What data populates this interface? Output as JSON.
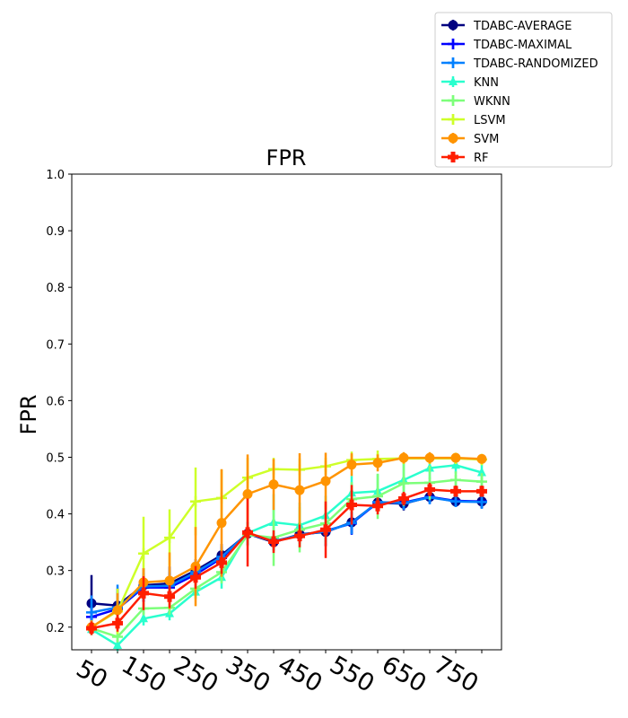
{
  "chart_data": {
    "type": "line",
    "title": "FPR",
    "ylabel": "FPR",
    "xlabel": "",
    "x": [
      50,
      100,
      150,
      200,
      250,
      300,
      350,
      400,
      450,
      500,
      550,
      600,
      650,
      700,
      750,
      800
    ],
    "xtick_labels": [
      "50",
      "150",
      "250",
      "350",
      "450",
      "550",
      "650",
      "750"
    ],
    "xtick_values": [
      50,
      150,
      250,
      350,
      450,
      550,
      650,
      750
    ],
    "ylim": [
      0.16,
      1.0
    ],
    "yticks": [
      0.2,
      0.3,
      0.4,
      0.5,
      0.6,
      0.7,
      0.8,
      0.9,
      1.0
    ],
    "ytick_labels": [
      "0.2",
      "0.3",
      "0.4",
      "0.5",
      "0.6",
      "0.7",
      "0.8",
      "0.9",
      "1.0"
    ],
    "grid": false,
    "legend_position": "top-right, outside plot",
    "series": [
      {
        "name": "TDABC-AVERAGE",
        "color": "#000080",
        "marker": "circle",
        "values": [
          0.242,
          0.238,
          0.274,
          0.277,
          0.3,
          0.327,
          0.365,
          0.35,
          0.364,
          0.368,
          0.385,
          0.42,
          0.418,
          0.43,
          0.422,
          0.422
        ],
        "errors": [
          0.05,
          0.03,
          0.03,
          0.03,
          0.02,
          0.02,
          0.02,
          0.015,
          0.015,
          0.025,
          0.02,
          0.012,
          0.012,
          0.01,
          0.01,
          0.012
        ]
      },
      {
        "name": "TDABC-MAXIMAL",
        "color": "#0000ff",
        "marker": "plus",
        "values": [
          0.218,
          0.232,
          0.27,
          0.27,
          0.293,
          0.322,
          0.365,
          0.352,
          0.362,
          0.37,
          0.383,
          0.42,
          0.42,
          0.43,
          0.423,
          0.422
        ],
        "errors": [
          0.03,
          0.03,
          0.025,
          0.025,
          0.02,
          0.02,
          0.02,
          0.015,
          0.015,
          0.02,
          0.02,
          0.012,
          0.012,
          0.012,
          0.01,
          0.012
        ]
      },
      {
        "name": "TDABC-RANDOMIZED",
        "color": "#0080ff",
        "marker": "plus",
        "values": [
          0.226,
          0.235,
          0.272,
          0.273,
          0.297,
          0.324,
          0.366,
          0.351,
          0.363,
          0.369,
          0.384,
          0.421,
          0.419,
          0.429,
          0.422,
          0.421
        ],
        "errors": [
          0.03,
          0.04,
          0.025,
          0.025,
          0.02,
          0.02,
          0.02,
          0.015,
          0.015,
          0.02,
          0.02,
          0.012,
          0.012,
          0.012,
          0.01,
          0.012
        ]
      },
      {
        "name": "KNN",
        "color": "#29ffce",
        "marker": "triangle",
        "values": [
          0.196,
          0.168,
          0.215,
          0.224,
          0.262,
          0.288,
          0.366,
          0.385,
          0.38,
          0.397,
          0.437,
          0.44,
          0.46,
          0.481,
          0.486,
          0.473
        ],
        "errors": [
          0.01,
          0.01,
          0.012,
          0.012,
          0.012,
          0.02,
          0.02,
          0.05,
          0.04,
          0.035,
          0.03,
          0.03,
          0.03,
          0.02,
          0.015,
          0.015
        ]
      },
      {
        "name": "WKNN",
        "color": "#7dff7a",
        "marker": "plus",
        "values": [
          0.198,
          0.183,
          0.233,
          0.234,
          0.268,
          0.297,
          0.363,
          0.358,
          0.372,
          0.383,
          0.426,
          0.431,
          0.454,
          0.455,
          0.46,
          0.457
        ],
        "errors": [
          0.012,
          0.01,
          0.012,
          0.012,
          0.012,
          0.02,
          0.02,
          0.05,
          0.04,
          0.035,
          0.03,
          0.04,
          0.04,
          0.03,
          0.015,
          0.015
        ]
      },
      {
        "name": "LSVM",
        "color": "#ceff29",
        "marker": "plus",
        "values": [
          0.2,
          0.228,
          0.33,
          0.358,
          0.422,
          0.428,
          0.464,
          0.479,
          0.478,
          0.484,
          0.495,
          0.497,
          0.498,
          0.498,
          0.498,
          0.496
        ],
        "errors": [
          0.012,
          0.04,
          0.065,
          0.05,
          0.06,
          0.05,
          0.035,
          0.02,
          0.02,
          0.015,
          0.015,
          0.015,
          0.01,
          0.01,
          0.01,
          0.01
        ]
      },
      {
        "name": "SVM",
        "color": "#ff9400",
        "marker": "circle",
        "values": [
          0.2,
          0.23,
          0.279,
          0.282,
          0.307,
          0.384,
          0.435,
          0.452,
          0.442,
          0.458,
          0.487,
          0.49,
          0.499,
          0.499,
          0.499,
          0.497
        ],
        "errors": [
          0.012,
          0.03,
          0.025,
          0.05,
          0.07,
          0.095,
          0.07,
          0.045,
          0.065,
          0.05,
          0.02,
          0.015,
          0.01,
          0.01,
          0.008,
          0.008
        ]
      },
      {
        "name": "RF",
        "color": "#ff1e00",
        "marker": "plus-filled",
        "values": [
          0.198,
          0.207,
          0.26,
          0.254,
          0.288,
          0.314,
          0.367,
          0.351,
          0.361,
          0.372,
          0.416,
          0.414,
          0.427,
          0.443,
          0.44,
          0.44
        ],
        "errors": [
          0.012,
          0.015,
          0.03,
          0.02,
          0.02,
          0.02,
          0.06,
          0.02,
          0.02,
          0.05,
          0.035,
          0.015,
          0.012,
          0.012,
          0.01,
          0.01
        ]
      }
    ]
  }
}
